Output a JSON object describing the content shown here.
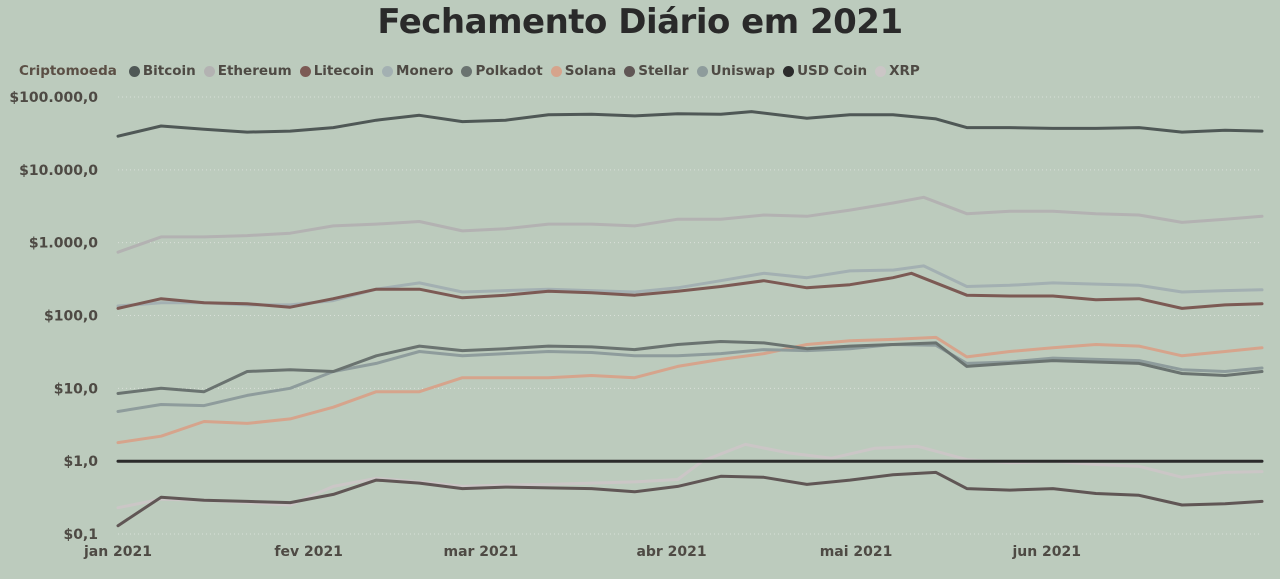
{
  "title": "Fechamento Diário em 2021",
  "legend": {
    "title": "Criptomoeda",
    "items": [
      {
        "label": "Bitcoin",
        "color": "#4f5856"
      },
      {
        "label": "Ethereum",
        "color": "#b3b2b2"
      },
      {
        "label": "Litecoin",
        "color": "#7c5a54"
      },
      {
        "label": "Monero",
        "color": "#a3b0b2"
      },
      {
        "label": "Polkadot",
        "color": "#6a7370"
      },
      {
        "label": "Solana",
        "color": "#d6a48c"
      },
      {
        "label": "Stellar",
        "color": "#605655"
      },
      {
        "label": "Uniswap",
        "color": "#8e9c9c"
      },
      {
        "label": "USD Coin",
        "color": "#2b2b2b"
      },
      {
        "label": "XRP",
        "color": "#cbc6c6"
      }
    ]
  },
  "chart_data": {
    "type": "line",
    "title": "Fechamento Diário em 2021",
    "legend_title": "Criptomoeda",
    "legend_position": "top-left",
    "y_scale": "log",
    "ylim": [
      0.1,
      100000
    ],
    "y_ticks": [
      {
        "value": 100000,
        "label": "$100.000,0"
      },
      {
        "value": 10000,
        "label": "$10.000,0"
      },
      {
        "value": 1000,
        "label": "$1.000,0"
      },
      {
        "value": 100,
        "label": "$100,0"
      },
      {
        "value": 10,
        "label": "$10,0"
      },
      {
        "value": 1,
        "label": "$1,0"
      },
      {
        "value": 0.1,
        "label": "$0,1"
      }
    ],
    "x_ticks": [
      {
        "date": "2021-01-01",
        "label": "jan 2021"
      },
      {
        "date": "2021-02-01",
        "label": "fev 2021"
      },
      {
        "date": "2021-03-01",
        "label": "mar 2021"
      },
      {
        "date": "2021-04-01",
        "label": "abr 2021"
      },
      {
        "date": "2021-05-01",
        "label": "mai 2021"
      },
      {
        "date": "2021-06-01",
        "label": "jun 2021"
      }
    ],
    "xlim": [
      "2021-01-01",
      "2021-07-06"
    ],
    "grid": "horizontal-dotted",
    "series": [
      {
        "name": "Bitcoin",
        "color": "#4f5856",
        "x": [
          "2021-01-01",
          "2021-01-08",
          "2021-01-15",
          "2021-01-22",
          "2021-01-29",
          "2021-02-05",
          "2021-02-12",
          "2021-02-19",
          "2021-02-26",
          "2021-03-05",
          "2021-03-12",
          "2021-03-19",
          "2021-03-26",
          "2021-04-02",
          "2021-04-09",
          "2021-04-14",
          "2021-04-23",
          "2021-04-30",
          "2021-05-07",
          "2021-05-14",
          "2021-05-19",
          "2021-05-26",
          "2021-06-02",
          "2021-06-09",
          "2021-06-16",
          "2021-06-23",
          "2021-06-30",
          "2021-07-06"
        ],
        "y": [
          29000,
          40000,
          36000,
          33000,
          34000,
          38000,
          48000,
          56000,
          46000,
          48000,
          57000,
          58000,
          55000,
          59000,
          58000,
          63000,
          51000,
          57000,
          57000,
          50000,
          38000,
          38000,
          37000,
          37000,
          38000,
          33000,
          35000,
          34000
        ]
      },
      {
        "name": "Ethereum",
        "color": "#b3b2b2",
        "x": [
          "2021-01-01",
          "2021-01-08",
          "2021-01-15",
          "2021-01-22",
          "2021-01-29",
          "2021-02-05",
          "2021-02-12",
          "2021-02-19",
          "2021-02-26",
          "2021-03-05",
          "2021-03-12",
          "2021-03-19",
          "2021-03-26",
          "2021-04-02",
          "2021-04-09",
          "2021-04-16",
          "2021-04-23",
          "2021-04-30",
          "2021-05-07",
          "2021-05-12",
          "2021-05-19",
          "2021-05-26",
          "2021-06-02",
          "2021-06-09",
          "2021-06-16",
          "2021-06-23",
          "2021-06-30",
          "2021-07-06"
        ],
        "y": [
          740,
          1200,
          1200,
          1250,
          1350,
          1700,
          1800,
          1950,
          1450,
          1550,
          1800,
          1800,
          1700,
          2100,
          2100,
          2400,
          2300,
          2800,
          3500,
          4200,
          2500,
          2700,
          2700,
          2500,
          2400,
          1900,
          2100,
          2300
        ]
      },
      {
        "name": "Litecoin",
        "color": "#7c5a54",
        "x": [
          "2021-01-01",
          "2021-01-08",
          "2021-01-15",
          "2021-01-22",
          "2021-01-29",
          "2021-02-05",
          "2021-02-12",
          "2021-02-19",
          "2021-02-26",
          "2021-03-05",
          "2021-03-12",
          "2021-03-19",
          "2021-03-26",
          "2021-04-02",
          "2021-04-09",
          "2021-04-16",
          "2021-04-23",
          "2021-04-30",
          "2021-05-07",
          "2021-05-10",
          "2021-05-19",
          "2021-05-26",
          "2021-06-02",
          "2021-06-09",
          "2021-06-16",
          "2021-06-23",
          "2021-06-30",
          "2021-07-06"
        ],
        "y": [
          125,
          170,
          150,
          145,
          130,
          170,
          230,
          230,
          175,
          190,
          215,
          205,
          190,
          215,
          250,
          300,
          240,
          265,
          330,
          380,
          190,
          185,
          185,
          165,
          170,
          125,
          140,
          145
        ]
      },
      {
        "name": "Monero",
        "color": "#a3b0b2",
        "x": [
          "2021-01-01",
          "2021-01-08",
          "2021-01-15",
          "2021-01-22",
          "2021-01-29",
          "2021-02-05",
          "2021-02-12",
          "2021-02-19",
          "2021-02-26",
          "2021-03-05",
          "2021-03-12",
          "2021-03-19",
          "2021-03-26",
          "2021-04-02",
          "2021-04-09",
          "2021-04-16",
          "2021-04-23",
          "2021-04-30",
          "2021-05-07",
          "2021-05-12",
          "2021-05-19",
          "2021-05-26",
          "2021-06-02",
          "2021-06-09",
          "2021-06-16",
          "2021-06-23",
          "2021-06-30",
          "2021-07-06"
        ],
        "y": [
          135,
          150,
          150,
          140,
          140,
          160,
          230,
          280,
          210,
          220,
          230,
          220,
          210,
          240,
          300,
          380,
          330,
          410,
          420,
          480,
          250,
          260,
          280,
          270,
          260,
          210,
          220,
          225
        ]
      },
      {
        "name": "Polkadot",
        "color": "#6a7370",
        "x": [
          "2021-01-01",
          "2021-01-08",
          "2021-01-15",
          "2021-01-22",
          "2021-01-29",
          "2021-02-05",
          "2021-02-12",
          "2021-02-19",
          "2021-02-26",
          "2021-03-05",
          "2021-03-12",
          "2021-03-19",
          "2021-03-26",
          "2021-04-02",
          "2021-04-09",
          "2021-04-16",
          "2021-04-23",
          "2021-04-30",
          "2021-05-07",
          "2021-05-14",
          "2021-05-19",
          "2021-05-26",
          "2021-06-02",
          "2021-06-09",
          "2021-06-16",
          "2021-06-23",
          "2021-06-30",
          "2021-07-06"
        ],
        "y": [
          8.5,
          10,
          9,
          17,
          18,
          17,
          28,
          38,
          33,
          35,
          38,
          37,
          34,
          40,
          44,
          42,
          35,
          38,
          40,
          42,
          20,
          22,
          24,
          23,
          22,
          16,
          15,
          17
        ]
      },
      {
        "name": "Solana",
        "color": "#d6a48c",
        "x": [
          "2021-01-01",
          "2021-01-08",
          "2021-01-15",
          "2021-01-22",
          "2021-01-29",
          "2021-02-05",
          "2021-02-12",
          "2021-02-19",
          "2021-02-26",
          "2021-03-05",
          "2021-03-12",
          "2021-03-19",
          "2021-03-26",
          "2021-04-02",
          "2021-04-09",
          "2021-04-16",
          "2021-04-23",
          "2021-04-30",
          "2021-05-07",
          "2021-05-14",
          "2021-05-19",
          "2021-05-26",
          "2021-06-02",
          "2021-06-09",
          "2021-06-16",
          "2021-06-23",
          "2021-06-30",
          "2021-07-06"
        ],
        "y": [
          1.8,
          2.2,
          3.5,
          3.3,
          3.8,
          5.5,
          9,
          9,
          14,
          14,
          14,
          15,
          14,
          20,
          25,
          30,
          40,
          45,
          47,
          50,
          27,
          32,
          36,
          40,
          38,
          28,
          32,
          36
        ]
      },
      {
        "name": "Stellar",
        "color": "#605655",
        "x": [
          "2021-01-01",
          "2021-01-08",
          "2021-01-15",
          "2021-01-22",
          "2021-01-29",
          "2021-02-05",
          "2021-02-12",
          "2021-02-19",
          "2021-02-26",
          "2021-03-05",
          "2021-03-12",
          "2021-03-19",
          "2021-03-26",
          "2021-04-02",
          "2021-04-09",
          "2021-04-16",
          "2021-04-23",
          "2021-04-30",
          "2021-05-07",
          "2021-05-14",
          "2021-05-19",
          "2021-05-26",
          "2021-06-02",
          "2021-06-09",
          "2021-06-16",
          "2021-06-23",
          "2021-06-30",
          "2021-07-06"
        ],
        "y": [
          0.13,
          0.32,
          0.29,
          0.28,
          0.27,
          0.35,
          0.55,
          0.5,
          0.42,
          0.44,
          0.43,
          0.42,
          0.38,
          0.45,
          0.62,
          0.6,
          0.48,
          0.55,
          0.65,
          0.7,
          0.42,
          0.4,
          0.42,
          0.36,
          0.34,
          0.25,
          0.26,
          0.28
        ]
      },
      {
        "name": "Uniswap",
        "color": "#8e9c9c",
        "x": [
          "2021-01-01",
          "2021-01-08",
          "2021-01-15",
          "2021-01-22",
          "2021-01-29",
          "2021-02-05",
          "2021-02-12",
          "2021-02-19",
          "2021-02-26",
          "2021-03-05",
          "2021-03-12",
          "2021-03-19",
          "2021-03-26",
          "2021-04-02",
          "2021-04-09",
          "2021-04-16",
          "2021-04-23",
          "2021-04-30",
          "2021-05-07",
          "2021-05-14",
          "2021-05-19",
          "2021-05-26",
          "2021-06-02",
          "2021-06-09",
          "2021-06-16",
          "2021-06-23",
          "2021-06-30",
          "2021-07-06"
        ],
        "y": [
          4.8,
          6,
          5.8,
          8,
          10,
          17,
          22,
          32,
          28,
          30,
          32,
          31,
          28,
          28,
          30,
          34,
          33,
          35,
          40,
          39,
          22,
          23,
          26,
          25,
          24,
          18,
          17,
          19
        ]
      },
      {
        "name": "USD Coin",
        "color": "#2b2b2b",
        "x": [
          "2021-01-01",
          "2021-07-06"
        ],
        "y": [
          1.0,
          1.0
        ]
      },
      {
        "name": "XRP",
        "color": "#cbc6c6",
        "x": [
          "2021-01-01",
          "2021-01-08",
          "2021-01-15",
          "2021-01-22",
          "2021-01-29",
          "2021-02-05",
          "2021-02-12",
          "2021-02-19",
          "2021-02-26",
          "2021-03-05",
          "2021-03-12",
          "2021-03-19",
          "2021-03-26",
          "2021-04-02",
          "2021-04-06",
          "2021-04-13",
          "2021-04-20",
          "2021-04-27",
          "2021-05-04",
          "2021-05-11",
          "2021-05-19",
          "2021-05-26",
          "2021-06-02",
          "2021-06-09",
          "2021-06-16",
          "2021-06-23",
          "2021-06-30",
          "2021-07-06"
        ],
        "y": [
          0.23,
          0.3,
          0.29,
          0.27,
          0.25,
          0.45,
          0.58,
          0.52,
          0.45,
          0.47,
          0.48,
          0.5,
          0.52,
          0.56,
          1.0,
          1.7,
          1.3,
          1.1,
          1.5,
          1.6,
          1.05,
          0.95,
          1.0,
          0.9,
          0.85,
          0.6,
          0.7,
          0.72
        ]
      }
    ]
  }
}
